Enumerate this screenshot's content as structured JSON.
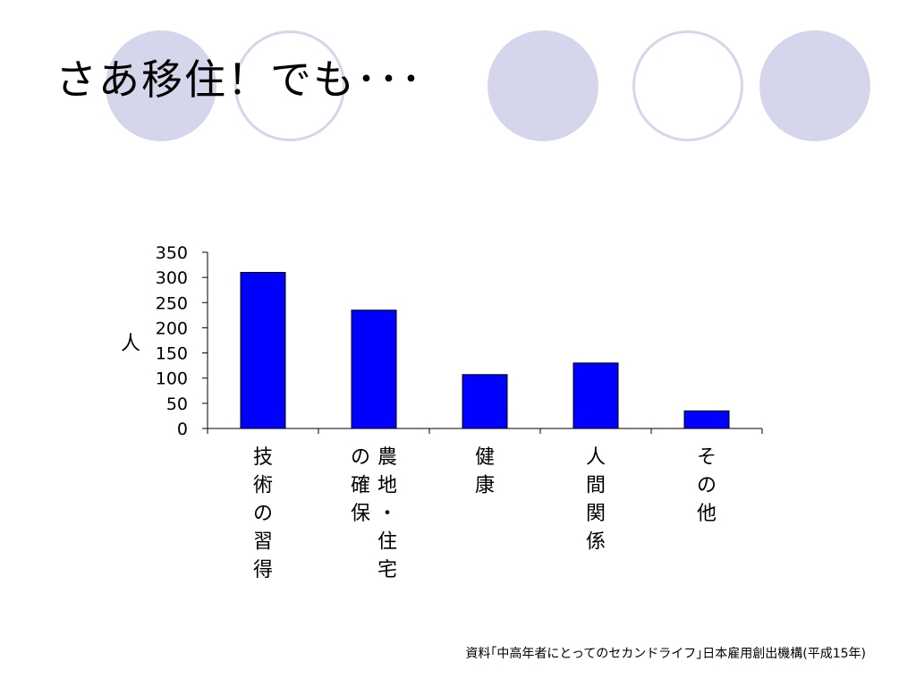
{
  "slide": {
    "title": "さあ移住！でも･･･",
    "source": "資料｢中高年者にとってのセカンドライフ｣日本雇用創出機構(平成15年)"
  },
  "colors": {
    "bar": "#0000ff",
    "decor_circle": "#d5d5ec"
  },
  "chart_data": {
    "type": "bar",
    "title": "",
    "xlabel": "",
    "ylabel": "人",
    "categories": [
      "技術の習得",
      "農地・住宅の確保",
      "健康",
      "人間関係",
      "その他"
    ],
    "values": [
      310,
      235,
      107,
      130,
      35
    ],
    "ylim": [
      0,
      350
    ],
    "yticks": [
      0,
      50,
      100,
      150,
      200,
      250,
      300,
      350
    ],
    "grid": false,
    "legend": "none"
  }
}
